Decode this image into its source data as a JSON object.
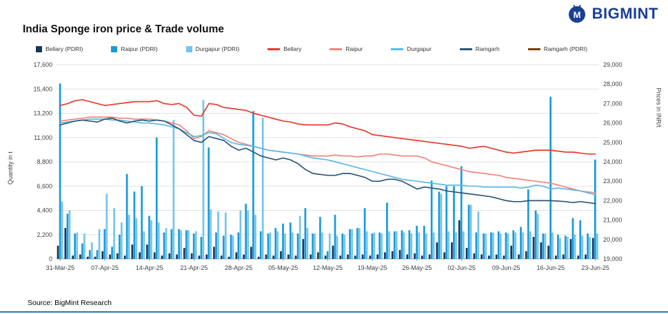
{
  "header": {
    "logo_text": "BIGMINT"
  },
  "title": "India Sponge iron price & Trade volume",
  "source": "Source: BigMint Research",
  "colors": {
    "accent_line": "#2E74B5",
    "logo_blue": "#1B3F94",
    "bellary_pdri": "#17375E",
    "raipur_pdri": "#189BD8",
    "durgapur_pdri": "#74C5EC",
    "bellary": "#E8392E",
    "raipur": "#F0867B",
    "durgapur": "#5BB9E9",
    "ramgarh": "#2C5777",
    "ramgarh_pdri": "#7B3F00"
  },
  "legend": [
    {
      "label": "Bellary (PDRI)",
      "color": "#17375E",
      "marker": "square"
    },
    {
      "label": "Raipur (PDRI)",
      "color": "#189BD8",
      "marker": "square"
    },
    {
      "label": "Durgapur (PDRI)",
      "color": "#74C5EC",
      "marker": "square"
    },
    {
      "label": "Bellary",
      "color": "#E8392E",
      "marker": "line"
    },
    {
      "label": "Raipur",
      "color": "#F0867B",
      "marker": "line"
    },
    {
      "label": "Durgapur",
      "color": "#5BB9E9",
      "marker": "line"
    },
    {
      "label": "Ramgarh",
      "color": "#2C5777",
      "marker": "line"
    },
    {
      "label": "Ramgarh (PDRI)",
      "color": "#7B3F00",
      "marker": "line"
    }
  ],
  "chart_data": {
    "type": "combo-bar-line",
    "title": "India Sponge iron price & Trade volume",
    "left_axis": {
      "title": "Quantity in t",
      "min": 0,
      "max": 17600,
      "step": 2200,
      "ticks": [
        "0",
        "2,200",
        "4,400",
        "6,600",
        "8,800",
        "11,000",
        "13,200",
        "15,400",
        "17,600"
      ]
    },
    "right_axis": {
      "title": "Prices in INR/t",
      "min": 19000,
      "max": 29000,
      "step": 1000,
      "ticks": [
        "19,000",
        "20,000",
        "21,000",
        "22,000",
        "23,000",
        "24,000",
        "25,000",
        "26,000",
        "27,000",
        "28,000",
        "29,000"
      ]
    },
    "x_tick_labels": [
      "31-Mar-25",
      "07-Apr-25",
      "14-Apr-25",
      "21-Apr-25",
      "28-Apr-25",
      "05-May-25",
      "12-May-25",
      "19-May-25",
      "26-May-25",
      "02-Jun-25",
      "09-Jun-25",
      "16-Jun-25",
      "23-Jun-25"
    ],
    "dates": [
      "31-Mar-25",
      "01-Apr-25",
      "02-Apr-25",
      "03-Apr-25",
      "04-Apr-25",
      "05-Apr-25",
      "07-Apr-25",
      "08-Apr-25",
      "09-Apr-25",
      "10-Apr-25",
      "11-Apr-25",
      "12-Apr-25",
      "14-Apr-25",
      "15-Apr-25",
      "16-Apr-25",
      "17-Apr-25",
      "18-Apr-25",
      "19-Apr-25",
      "21-Apr-25",
      "22-Apr-25",
      "23-Apr-25",
      "24-Apr-25",
      "25-Apr-25",
      "26-Apr-25",
      "28-Apr-25",
      "29-Apr-25",
      "30-Apr-25",
      "01-May-25",
      "02-May-25",
      "03-May-25",
      "05-May-25",
      "06-May-25",
      "07-May-25",
      "08-May-25",
      "09-May-25",
      "10-May-25",
      "12-May-25",
      "13-May-25",
      "14-May-25",
      "15-May-25",
      "16-May-25",
      "17-May-25",
      "19-May-25",
      "20-May-25",
      "21-May-25",
      "22-May-25",
      "23-May-25",
      "24-May-25",
      "26-May-25",
      "27-May-25",
      "28-May-25",
      "29-May-25",
      "30-May-25",
      "31-May-25",
      "02-Jun-25",
      "03-Jun-25",
      "04-Jun-25",
      "05-Jun-25",
      "06-Jun-25",
      "07-Jun-25",
      "09-Jun-25",
      "10-Jun-25",
      "11-Jun-25",
      "12-Jun-25",
      "13-Jun-25",
      "14-Jun-25",
      "16-Jun-25",
      "17-Jun-25",
      "18-Jun-25",
      "19-Jun-25",
      "20-Jun-25",
      "21-Jun-25",
      "23-Jun-25"
    ],
    "bar_series": [
      {
        "name": "Bellary (PDRI)",
        "color": "#17375E",
        "values": [
          1200,
          2800,
          300,
          400,
          200,
          200,
          700,
          400,
          500,
          300,
          1300,
          600,
          1300,
          600,
          300,
          500,
          400,
          1000,
          500,
          300,
          400,
          1100,
          300,
          200,
          600,
          400,
          1100,
          200,
          400,
          300,
          700,
          400,
          300,
          1800,
          400,
          600,
          300,
          1200,
          300,
          400,
          300,
          400,
          300,
          400,
          600,
          700,
          800,
          400,
          500,
          300,
          400,
          1500,
          600,
          1500,
          3500,
          1000,
          500,
          400,
          300,
          400,
          300,
          1200,
          400,
          700,
          2000,
          1500,
          1200,
          300,
          400,
          1800,
          300,
          400,
          1900
        ]
      },
      {
        "name": "Raipur (PDRI)",
        "color": "#189BD8",
        "values": [
          15900,
          4100,
          2300,
          1400,
          800,
          800,
          2700,
          1100,
          2200,
          7700,
          6100,
          6600,
          3900,
          11000,
          2400,
          2700,
          2700,
          2600,
          2300,
          2000,
          10100,
          2400,
          2100,
          2200,
          2400,
          5000,
          13400,
          2500,
          2300,
          2800,
          3200,
          3300,
          2300,
          4600,
          2300,
          3800,
          700,
          4000,
          2300,
          2700,
          2800,
          4600,
          2300,
          2400,
          5100,
          2500,
          2600,
          2600,
          3000,
          3000,
          7100,
          6100,
          6600,
          6600,
          8400,
          4900,
          2400,
          2300,
          2400,
          2500,
          2400,
          2600,
          2900,
          6300,
          4400,
          2300,
          14700,
          2200,
          2100,
          3700,
          3500,
          2300,
          9000
        ]
      },
      {
        "name": "Durgapur (PDRI)",
        "color": "#74C5EC",
        "values": [
          5200,
          4400,
          2400,
          2300,
          1500,
          2700,
          5900,
          4600,
          3300,
          4000,
          3700,
          2500,
          3500,
          3300,
          2800,
          12600,
          2600,
          2600,
          2500,
          14400,
          4500,
          4300,
          4200,
          2100,
          4400,
          4400,
          4000,
          12800,
          2400,
          2500,
          2300,
          2400,
          3900,
          2800,
          2300,
          2400,
          2300,
          2100,
          2200,
          2700,
          2800,
          2500,
          2400,
          2300,
          2500,
          2500,
          2400,
          2300,
          2400,
          2300,
          2400,
          5900,
          2500,
          2400,
          2500,
          4900,
          4300,
          2300,
          2400,
          2300,
          2300,
          2400,
          2400,
          2500,
          4100,
          2300,
          2400,
          1900,
          2000,
          2200,
          2100,
          2000,
          2300
        ]
      }
    ],
    "line_series": [
      {
        "name": "Bellary",
        "color": "#E8392E",
        "values": [
          26900,
          27000,
          27150,
          27200,
          27100,
          27000,
          26900,
          26950,
          27000,
          27050,
          27100,
          27100,
          27100,
          27150,
          27000,
          26950,
          27000,
          26800,
          26400,
          26350,
          27000,
          26950,
          26800,
          26750,
          26700,
          26650,
          26500,
          26400,
          26300,
          26200,
          26100,
          26050,
          25950,
          25900,
          25900,
          25900,
          25900,
          26000,
          25950,
          25800,
          25700,
          25600,
          25400,
          25350,
          25300,
          25250,
          25200,
          25150,
          25100,
          25050,
          25000,
          24950,
          24900,
          24850,
          24800,
          24700,
          24750,
          24800,
          24700,
          24600,
          24500,
          24450,
          24500,
          24550,
          24600,
          24600,
          24600,
          24550,
          24500,
          24500,
          24450,
          24400,
          24400
        ]
      },
      {
        "name": "Raipur",
        "color": "#F0867B",
        "values": [
          26100,
          26150,
          26200,
          26250,
          26300,
          26300,
          26300,
          26300,
          26250,
          26250,
          26200,
          26200,
          26200,
          26150,
          26100,
          26000,
          25900,
          25600,
          25200,
          25300,
          25600,
          25500,
          25400,
          25200,
          25000,
          24900,
          24800,
          24700,
          24600,
          24550,
          24500,
          24450,
          24400,
          24350,
          24300,
          24300,
          24300,
          24350,
          24300,
          24300,
          24250,
          24300,
          24300,
          24400,
          24400,
          24350,
          24300,
          24300,
          24300,
          24200,
          24000,
          23900,
          23800,
          23700,
          23600,
          23500,
          23450,
          23400,
          23350,
          23300,
          23200,
          23150,
          23100,
          23050,
          23000,
          22950,
          22900,
          22800,
          22700,
          22600,
          22500,
          22450,
          22400
        ]
      },
      {
        "name": "Durgapur",
        "color": "#5BB9E9",
        "values": [
          26000,
          26050,
          26100,
          26150,
          26200,
          26200,
          26200,
          26150,
          26150,
          26100,
          26050,
          26000,
          26000,
          25950,
          25900,
          25800,
          25700,
          25500,
          25300,
          25350,
          25500,
          25450,
          25200,
          25000,
          24900,
          24850,
          24800,
          24700,
          24600,
          24550,
          24500,
          24450,
          24400,
          24300,
          24200,
          24150,
          24100,
          24000,
          23900,
          23800,
          23700,
          23600,
          23500,
          23400,
          23300,
          23200,
          23100,
          23050,
          23000,
          22950,
          22900,
          22850,
          22800,
          22800,
          22800,
          22750,
          22750,
          22700,
          22700,
          22700,
          22700,
          22700,
          22650,
          22700,
          22800,
          22750,
          22600,
          22650,
          22600,
          22550,
          22500,
          22400,
          22300
        ]
      },
      {
        "name": "Ramgarh",
        "color": "#2C5777",
        "values": [
          25900,
          26000,
          26100,
          26150,
          26100,
          26050,
          26200,
          26250,
          26100,
          26000,
          26100,
          26150,
          26100,
          26150,
          26100,
          25900,
          25700,
          25400,
          25100,
          25000,
          25300,
          25200,
          25100,
          24800,
          24600,
          24700,
          24500,
          24300,
          24200,
          24100,
          24200,
          24100,
          23900,
          23600,
          23400,
          23350,
          23300,
          23300,
          23400,
          23400,
          23300,
          23200,
          23000,
          23000,
          23100,
          23100,
          23000,
          22800,
          22600,
          22700,
          22650,
          22600,
          22500,
          22450,
          22400,
          22350,
          22300,
          22250,
          22200,
          22100,
          22000,
          21950,
          21950,
          22000,
          22000,
          22000,
          22000,
          21980,
          21950,
          21900,
          21950,
          21900,
          21850
        ]
      },
      {
        "name": "Ramgarh (PDRI)",
        "color": "#7B3F00",
        "values": []
      }
    ]
  }
}
